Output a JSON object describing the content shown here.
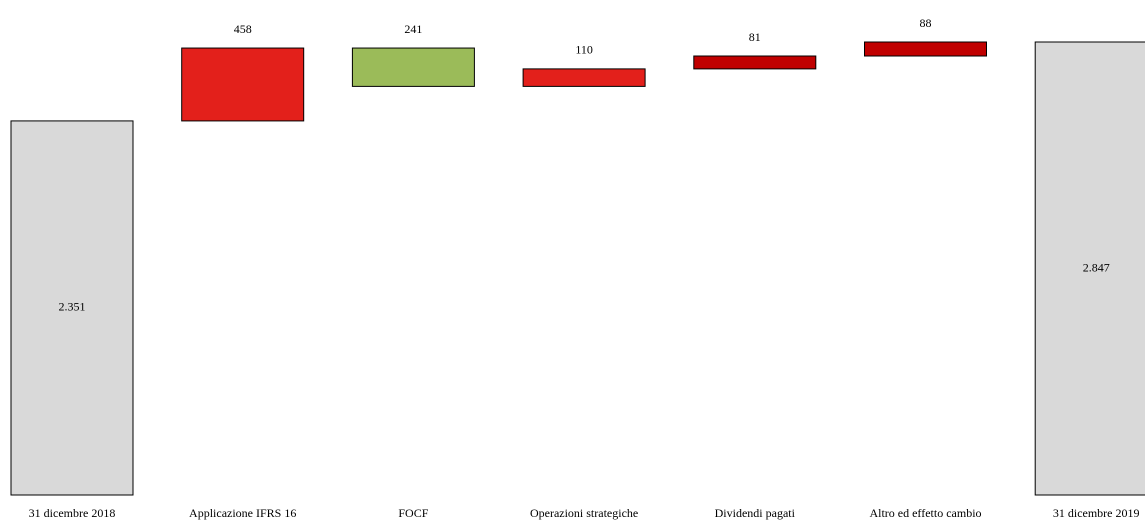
{
  "chart_data": {
    "type": "waterfall",
    "categories": [
      "31 dicembre 2018",
      "Applicazione IFRS 16",
      "FOCF",
      "Operazioni strategiche",
      "Dividendi pagati",
      "Altro ed effetto cambio",
      "31 dicembre 2019"
    ],
    "measure": [
      "total",
      "relative",
      "relative",
      "relative",
      "relative",
      "relative",
      "total"
    ],
    "values": [
      2351,
      458,
      -241,
      110,
      81,
      88,
      2847
    ],
    "value_labels": [
      "2.351",
      "458",
      "241",
      "110",
      "81",
      "88",
      "2.847"
    ],
    "colors": [
      "#d9d9d9",
      "#e3201b",
      "#9bbb59",
      "#e3201b",
      "#c00000",
      "#c00000",
      "#d9d9d9"
    ]
  }
}
